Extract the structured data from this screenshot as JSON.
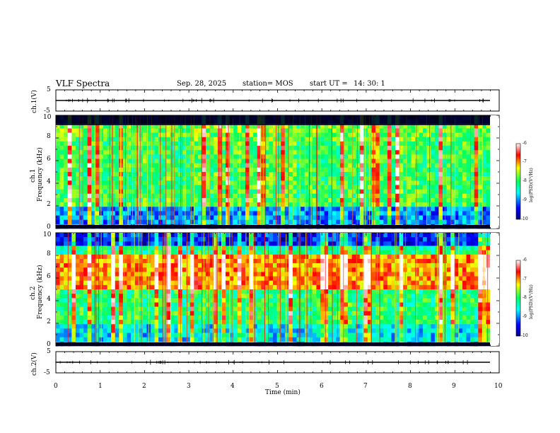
{
  "header": {
    "title": "VLF Spectra",
    "date": "Sep. 28, 2025",
    "station": "station= MOS",
    "start_label": "start UT =",
    "start_time": "14: 30: 1"
  },
  "chart_data": [
    {
      "type": "line",
      "panel": "ch1-waveform",
      "ylabel": "ch.1(V)",
      "ylim": [
        -5,
        5
      ],
      "y_ticks": [
        "5",
        "-5"
      ],
      "xlim": [
        0,
        10
      ],
      "baseline_value": 0
    },
    {
      "type": "heatmap",
      "panel": "ch1-spectrogram",
      "ylabel_line1": "ch.1",
      "ylabel_line2": "Frequency (kHz)",
      "ylim": [
        0,
        10
      ],
      "y_ticks": [
        "0",
        "2",
        "4",
        "6",
        "8",
        "10"
      ],
      "xlim": [
        0,
        9.85
      ],
      "colorbar": {
        "label": "log(PSD)(V²/Hz)",
        "range": [
          -10,
          -6
        ],
        "ticks": [
          "-6",
          "-7",
          "-8",
          "-9",
          "-10"
        ]
      },
      "intense_band_khz": [
        2,
        9
      ]
    },
    {
      "type": "heatmap",
      "panel": "ch2-spectrogram",
      "ylabel_line1": "ch.2",
      "ylabel_line2": "Frequency (kHz)",
      "ylim": [
        0,
        10
      ],
      "y_ticks": [
        "0",
        "2",
        "4",
        "6",
        "8",
        "10"
      ],
      "xlim": [
        0,
        9.85
      ],
      "colorbar": {
        "label": "log(PSD)(V²/Hz)",
        "range": [
          -10,
          -6
        ],
        "ticks": [
          "-6",
          "-7",
          "-8",
          "-9",
          "-10"
        ]
      },
      "intense_band_khz": [
        5,
        8
      ]
    },
    {
      "type": "line",
      "panel": "ch2-waveform",
      "ylabel": "ch.2(V)",
      "ylim": [
        -5,
        5
      ],
      "y_ticks": [
        "5",
        "-5"
      ],
      "xlim": [
        0,
        10
      ],
      "baseline_value": 0
    }
  ],
  "x_axis": {
    "label": "Time  (min)",
    "ticks": [
      "0",
      "1",
      "2",
      "3",
      "4",
      "5",
      "6",
      "7",
      "8",
      "9",
      "10"
    ]
  },
  "colors": {
    "ink": "#000000",
    "background": "#ffffff"
  }
}
